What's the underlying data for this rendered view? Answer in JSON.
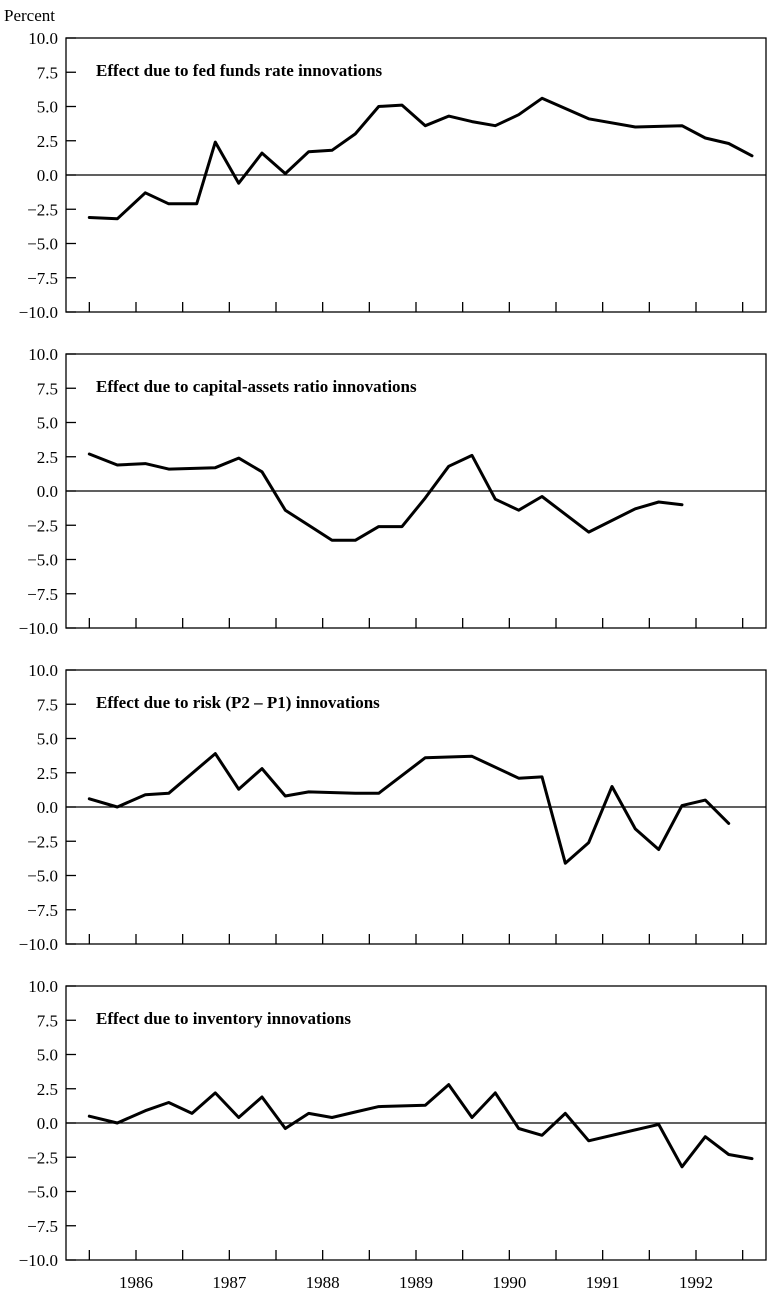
{
  "chart_data": {
    "type": "line",
    "ylabel": "Percent",
    "x_labels": [
      "1986",
      "1987",
      "1988",
      "1989",
      "1990",
      "1991",
      "1992"
    ],
    "ylim": [
      -10.0,
      10.0
    ],
    "y_ticks": [
      "10.0",
      "7.5",
      "5.0",
      "2.5",
      "0.0",
      "-2.5",
      "-5.0",
      "-7.5",
      "-10.0"
    ],
    "grid": false,
    "zero_line": true,
    "x_range": [
      1985.75,
      1993.25
    ],
    "panels": [
      {
        "title": "Effect due to fed funds rate innovations",
        "x": [
          1986.0,
          1986.25,
          1986.5,
          1986.75,
          1987.0,
          1987.25,
          1987.5,
          1987.75,
          1988.0,
          1988.25,
          1988.5,
          1988.75,
          1989.0,
          1989.25,
          1989.5,
          1989.75,
          1990.0,
          1990.25,
          1990.5,
          1990.75,
          1991.0,
          1991.25,
          1991.5,
          1991.75,
          1992.0,
          1992.25,
          1992.5,
          1992.75
        ],
        "values": [
          -3.1,
          -3.2,
          -1.3,
          -2.1,
          -2.1,
          2.4,
          -0.6,
          1.6,
          0.1,
          1.7,
          1.8,
          3.0,
          5.0,
          5.1,
          3.6,
          4.3,
          3.9,
          3.6,
          4.4,
          5.6,
          4.8,
          4.0,
          3.5,
          3.6,
          2.8,
          2.3,
          1.5,
          null
        ],
        "line_points": [
          [
            1986.0,
            -3.1
          ],
          [
            1986.3,
            -3.2
          ],
          [
            1986.6,
            -1.3
          ],
          [
            1986.85,
            -2.1
          ],
          [
            1987.15,
            -2.1
          ],
          [
            1987.35,
            2.4
          ],
          [
            1987.6,
            -0.6
          ],
          [
            1987.85,
            1.6
          ],
          [
            1988.1,
            0.1
          ],
          [
            1988.35,
            1.7
          ],
          [
            1988.6,
            1.8
          ],
          [
            1988.85,
            3.0
          ],
          [
            1989.1,
            5.0
          ],
          [
            1989.35,
            5.1
          ],
          [
            1989.6,
            3.6
          ],
          [
            1989.85,
            4.3
          ],
          [
            1990.1,
            3.9
          ],
          [
            1990.35,
            3.6
          ],
          [
            1990.6,
            4.4
          ],
          [
            1990.85,
            5.6
          ],
          [
            1991.35,
            4.1
          ],
          [
            1991.85,
            3.5
          ],
          [
            1992.35,
            3.6
          ],
          [
            1992.6,
            2.7
          ],
          [
            1992.85,
            2.3
          ],
          [
            1993.1,
            1.4
          ]
        ]
      },
      {
        "title": "Effect due to capital-assets ratio innovations",
        "line_points": [
          [
            1986.0,
            2.7
          ],
          [
            1986.3,
            1.9
          ],
          [
            1986.6,
            2.0
          ],
          [
            1986.85,
            1.6
          ],
          [
            1987.35,
            1.7
          ],
          [
            1987.6,
            2.4
          ],
          [
            1987.85,
            1.4
          ],
          [
            1988.1,
            -1.4
          ],
          [
            1988.35,
            -2.5
          ],
          [
            1988.6,
            -3.6
          ],
          [
            1988.85,
            -3.6
          ],
          [
            1989.1,
            -2.6
          ],
          [
            1989.35,
            -2.6
          ],
          [
            1989.6,
            -0.5
          ],
          [
            1989.85,
            1.8
          ],
          [
            1990.1,
            2.6
          ],
          [
            1990.35,
            -0.6
          ],
          [
            1990.6,
            -1.4
          ],
          [
            1990.85,
            -0.4
          ],
          [
            1991.35,
            -3.0
          ],
          [
            1991.85,
            -1.3
          ],
          [
            1992.1,
            -0.8
          ],
          [
            1992.35,
            -1.0
          ]
        ]
      },
      {
        "title": "Effect due to risk (P2 – P1) innovations",
        "line_points": [
          [
            1986.0,
            0.6
          ],
          [
            1986.3,
            0.0
          ],
          [
            1986.6,
            0.9
          ],
          [
            1986.85,
            1.0
          ],
          [
            1987.35,
            3.9
          ],
          [
            1987.6,
            1.3
          ],
          [
            1987.85,
            2.8
          ],
          [
            1988.1,
            0.8
          ],
          [
            1988.35,
            1.1
          ],
          [
            1988.85,
            1.0
          ],
          [
            1989.1,
            1.0
          ],
          [
            1989.6,
            3.6
          ],
          [
            1990.1,
            3.7
          ],
          [
            1990.6,
            2.1
          ],
          [
            1990.85,
            2.2
          ],
          [
            1991.1,
            -4.1
          ],
          [
            1991.35,
            -2.6
          ],
          [
            1991.6,
            1.5
          ],
          [
            1991.85,
            -1.6
          ],
          [
            1992.1,
            -3.1
          ],
          [
            1992.35,
            0.1
          ],
          [
            1992.6,
            0.5
          ],
          [
            1992.85,
            -1.2
          ]
        ]
      },
      {
        "title": "Effect due to inventory innovations",
        "line_points": [
          [
            1986.0,
            0.5
          ],
          [
            1986.3,
            0.0
          ],
          [
            1986.6,
            0.9
          ],
          [
            1986.85,
            1.5
          ],
          [
            1987.1,
            0.7
          ],
          [
            1987.35,
            2.2
          ],
          [
            1987.6,
            0.4
          ],
          [
            1987.85,
            1.9
          ],
          [
            1988.1,
            -0.4
          ],
          [
            1988.35,
            0.7
          ],
          [
            1988.6,
            0.4
          ],
          [
            1988.85,
            0.8
          ],
          [
            1989.1,
            1.2
          ],
          [
            1989.6,
            1.3
          ],
          [
            1989.85,
            2.8
          ],
          [
            1990.1,
            0.4
          ],
          [
            1990.35,
            2.2
          ],
          [
            1990.6,
            -0.4
          ],
          [
            1990.85,
            -0.9
          ],
          [
            1991.1,
            0.7
          ],
          [
            1991.35,
            -1.3
          ],
          [
            1992.1,
            -0.1
          ],
          [
            1992.35,
            -3.2
          ],
          [
            1992.6,
            -1.0
          ],
          [
            1992.85,
            -2.3
          ],
          [
            1993.1,
            -2.6
          ]
        ]
      }
    ]
  }
}
